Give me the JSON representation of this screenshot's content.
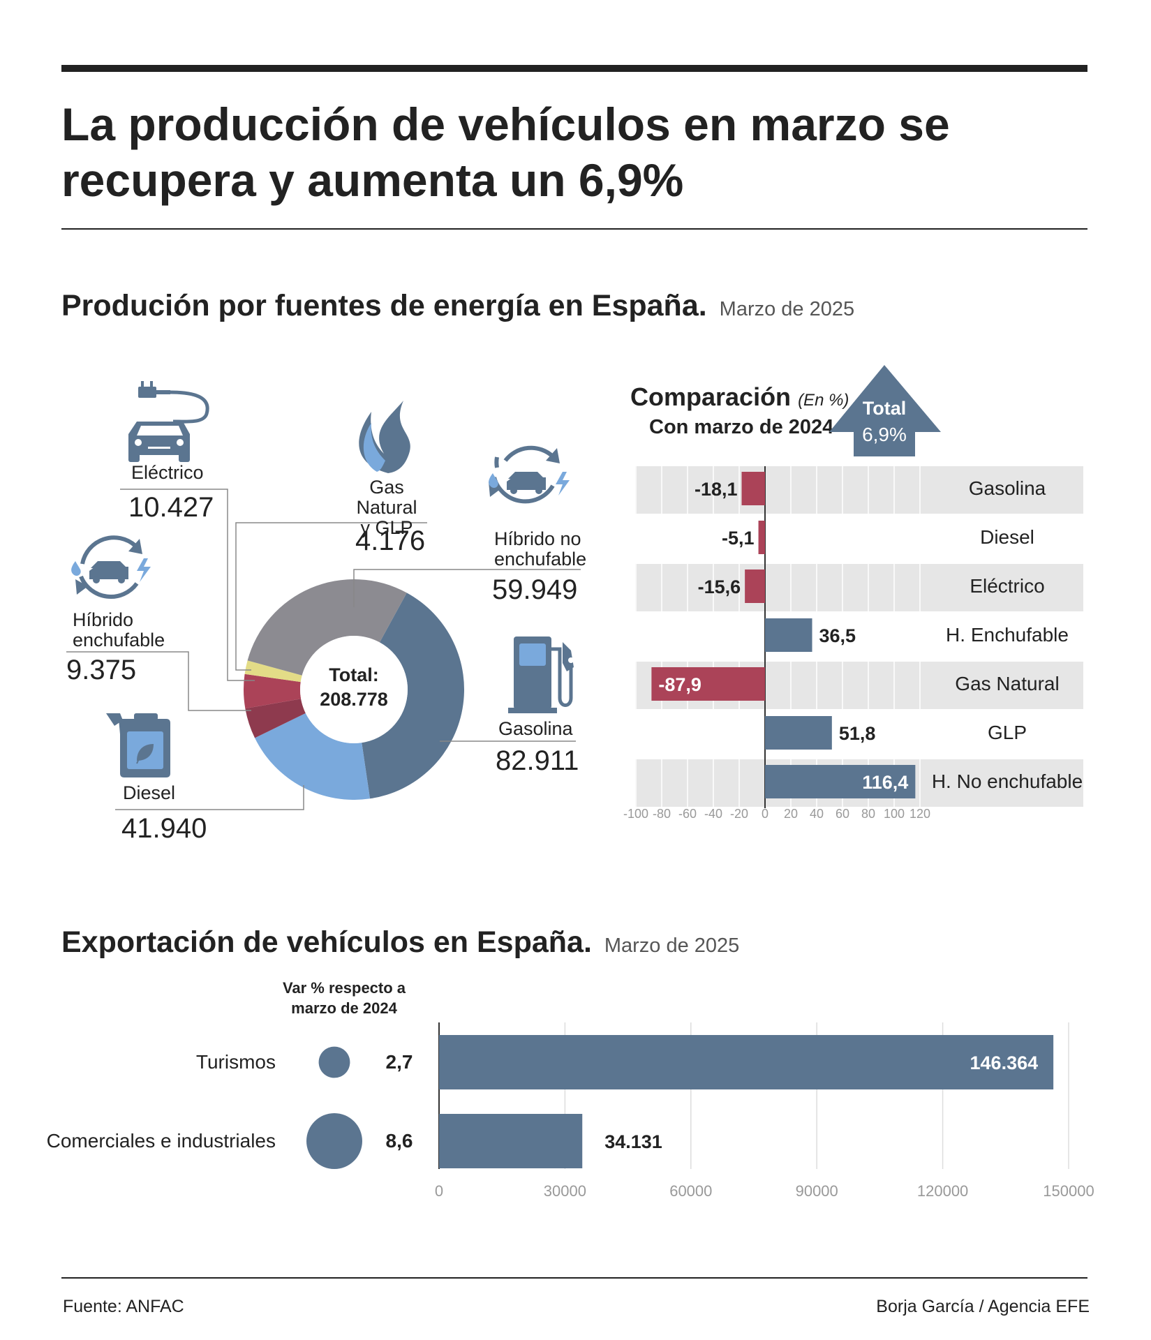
{
  "title": "La producción de vehículos en marzo se recupera y aumenta un 6,9%",
  "section1": {
    "title": "Produción por fuentes de energía en España.",
    "subtitle": "Marzo de 2025"
  },
  "donut": {
    "total_label": "Total:",
    "total_value": "208.778",
    "labels": {
      "electrico": "Eléctrico",
      "gas_line1": "Gas Natural",
      "gas_line2": "y GLP",
      "hne_line1": "Híbrido no",
      "hne_line2": "enchufable",
      "he_line1": "Híbrido",
      "he_line2": "enchufable",
      "gasolina": "Gasolina",
      "diesel": "Diesel"
    },
    "values": {
      "electrico": "10.427",
      "gas": "4.176",
      "hne": "59.949",
      "he": "9.375",
      "gasolina": "82.911",
      "diesel": "41.940"
    }
  },
  "comparison": {
    "title": "Comparación",
    "unit": "(En %)",
    "subtitle": "Con marzo de 2024",
    "total_label": "Total",
    "total_value": "6,9%"
  },
  "export": {
    "title": "Exportación de vehículos en España.",
    "subtitle": "Marzo de 2025",
    "var_header_line1": "Var % respecto a",
    "var_header_line2": "marzo de 2024"
  },
  "footer": {
    "source": "Fuente: ANFAC",
    "credit": "Borja García / Agencia EFE"
  },
  "colors": {
    "gasolina": "#5b7590",
    "diesel": "#7aa9dc",
    "he": "#8e3a4e",
    "electrico": "#ab4358",
    "gas": "#e3dc87",
    "hne": "#8c8b91",
    "positive": "#5b7590",
    "negative": "#ab4358",
    "band": "#e6e6e6",
    "icon": "#5b7590"
  },
  "chart_data": [
    {
      "type": "pie",
      "title": "Produción por fuentes de energía en España. Marzo de 2025",
      "total": 208778,
      "categories": [
        "Gasolina",
        "Diesel",
        "Híbrido enchufable",
        "Eléctrico",
        "Gas Natural y GLP",
        "Híbrido no enchufable"
      ],
      "values": [
        82911,
        41940,
        9375,
        10427,
        4176,
        59949
      ]
    },
    {
      "type": "bar",
      "orientation": "horizontal",
      "title": "Comparación (En %) Con marzo de 2024",
      "categories": [
        "Gasolina",
        "Diesel",
        "Eléctrico",
        "H. Enchufable",
        "Gas Natural",
        "GLP",
        "H. No enchufable"
      ],
      "values": [
        -18.1,
        -5.1,
        -15.6,
        36.5,
        -87.9,
        51.8,
        116.4
      ],
      "value_labels": [
        "-18,1",
        "-5,1",
        "-15,6",
        "36,5",
        "-87,9",
        "51,8",
        "116,4"
      ],
      "xlim": [
        -100,
        120
      ],
      "xticks": [
        -100,
        -80,
        -60,
        -40,
        -20,
        0,
        20,
        40,
        60,
        80,
        100,
        120
      ],
      "xtick_labels": [
        "-100",
        "-80",
        "-60",
        "-40",
        "-20",
        "0",
        "20",
        "40",
        "60",
        "80",
        "100",
        "120"
      ],
      "annotation": "Total 6,9%"
    },
    {
      "type": "bar",
      "orientation": "horizontal",
      "title": "Exportación de vehículos en España. Marzo de 2025",
      "categories": [
        "Turismos",
        "Comerciales e industriales"
      ],
      "values": [
        146364,
        34131
      ],
      "value_labels": [
        "146.364",
        "34.131"
      ],
      "var_pct": [
        2.7,
        8.6
      ],
      "var_pct_labels": [
        "2,7",
        "8,6"
      ],
      "xlim": [
        0,
        150000
      ],
      "xticks": [
        0,
        30000,
        60000,
        90000,
        120000,
        150000
      ],
      "xtick_labels": [
        "0",
        "30000",
        "60000",
        "90000",
        "120000",
        "150000"
      ]
    }
  ]
}
